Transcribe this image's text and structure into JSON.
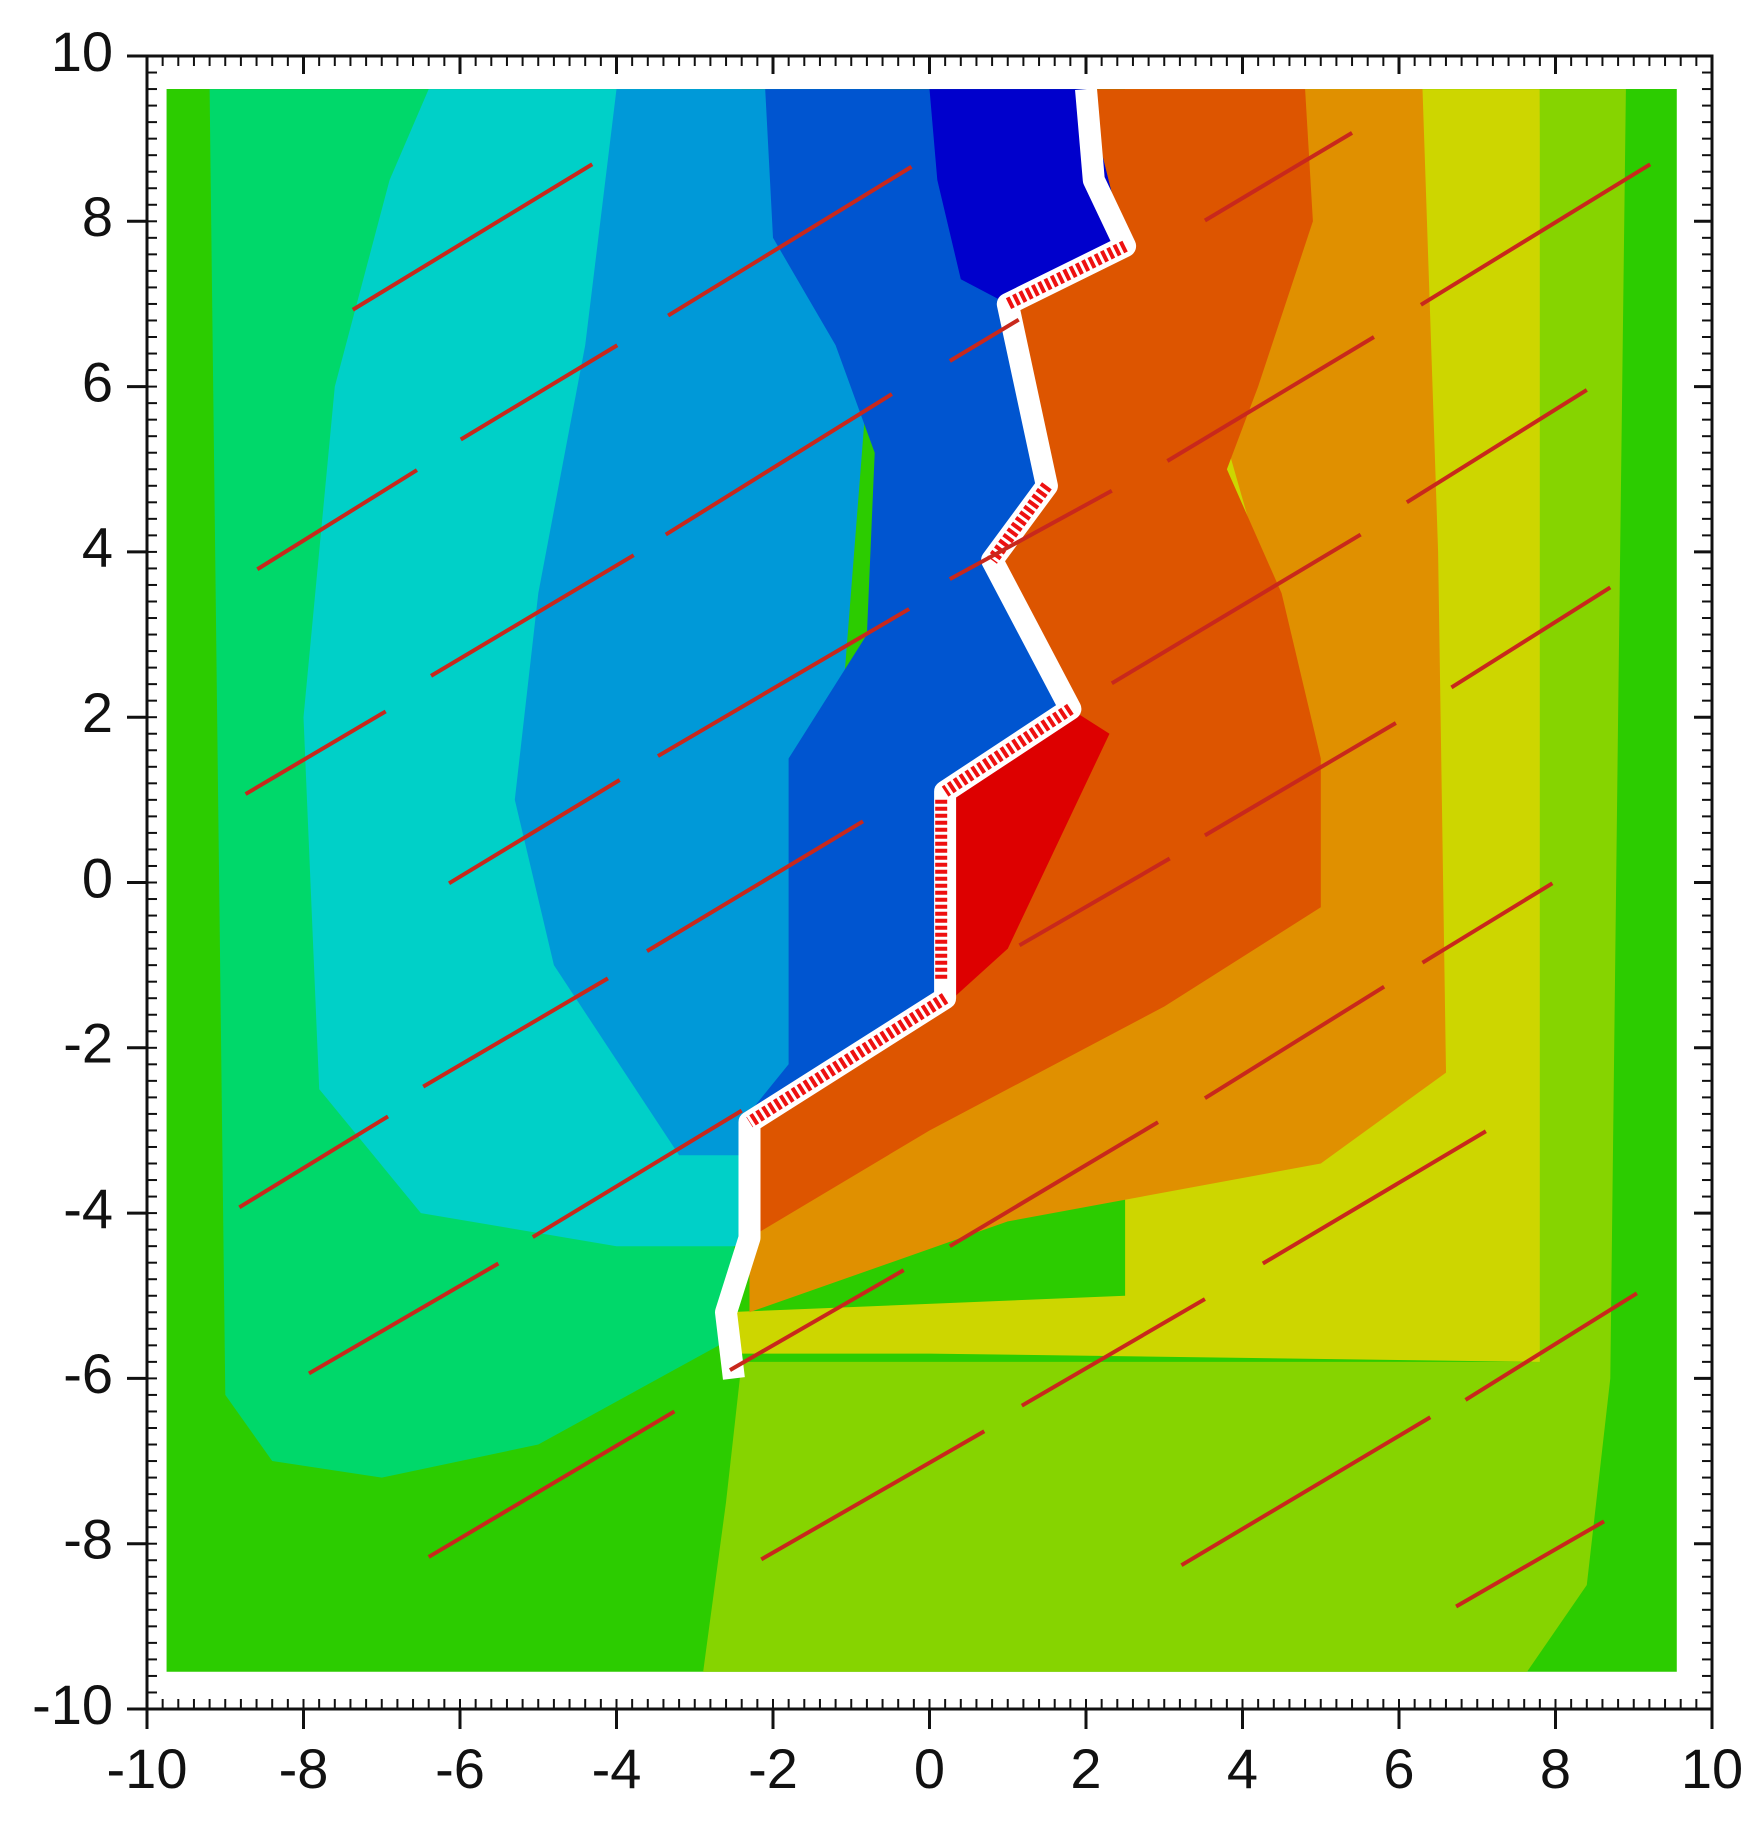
{
  "chart_data": {
    "type": "contour",
    "xlim": [
      -10,
      10
    ],
    "ylim": [
      -10,
      10
    ],
    "xticks": [
      -10,
      -8,
      -6,
      -4,
      -2,
      0,
      2,
      4,
      6,
      8,
      10
    ],
    "yticks": [
      -10,
      -8,
      -6,
      -4,
      -2,
      0,
      2,
      4,
      6,
      8,
      10
    ]
  }
}
